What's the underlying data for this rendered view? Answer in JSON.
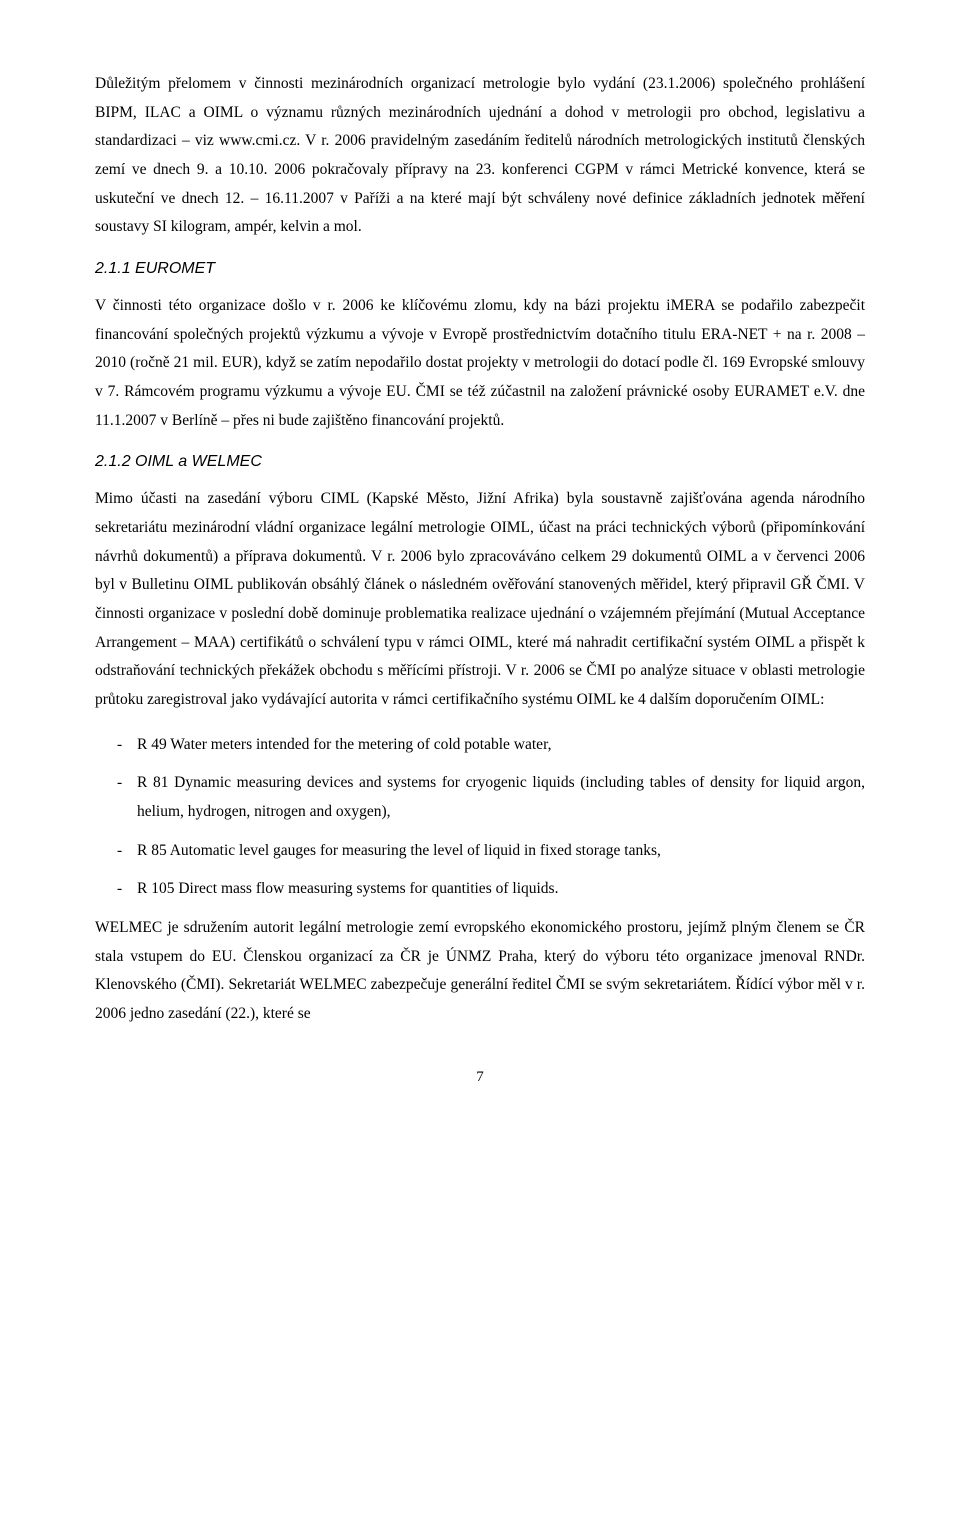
{
  "page": {
    "number": "7"
  },
  "paragraphs": {
    "p1": "Důležitým přelomem v činnosti mezinárodních organizací metrologie bylo vydání (23.1.2006) společného prohlášení BIPM, ILAC a OIML o významu různých mezinárodních ujednání a dohod v metrologii pro obchod, legislativu a standardizaci – viz www.cmi.cz. V r. 2006 pravidelným zasedáním ředitelů národních metrologických institutů členských zemí ve dnech 9. a 10.10. 2006 pokračovaly přípravy na 23. konferenci CGPM v rámci Metrické konvence, která se uskuteční ve dnech 12. – 16.11.2007 v Paříži a na které mají být schváleny nové definice základních jednotek měření soustavy SI kilogram, ampér, kelvin a mol.",
    "p2": "V činnosti této organizace došlo v r. 2006 ke klíčovému zlomu, kdy na bázi projektu iMERA se podařilo zabezpečit financování společných projektů výzkumu a vývoje v Evropě prostřednictvím dotačního titulu ERA-NET + na r. 2008 – 2010 (ročně 21 mil. EUR), když se zatím nepodařilo dostat projekty v metrologii do dotací podle čl. 169 Evropské smlouvy v 7. Rámcovém programu výzkumu a vývoje EU. ČMI se též zúčastnil na založení právnické osoby EURAMET e.V. dne 11.1.2007 v Berlíně – přes ni bude zajištěno financování projektů.",
    "p3": "Mimo účasti na zasedání výboru CIML (Kapské Město, Jižní Afrika) byla soustavně zajišťována agenda národního sekretariátu mezinárodní vládní organizace legální metrologie OIML, účast na práci technických výborů (připomínkování návrhů dokumentů) a příprava dokumentů. V r. 2006 bylo zpracováváno celkem 29 dokumentů OIML a v červenci 2006 byl v Bulletinu OIML publikován obsáhlý článek o následném ověřování stanovených měřidel, který připravil GŘ ČMI. V činnosti organizace v poslední době dominuje problematika realizace ujednání o vzájemném přejímání (Mutual Acceptance Arrangement – MAA) certifikátů o schválení typu v rámci OIML, které má nahradit certifikační systém OIML a přispět k odstraňování technických překážek obchodu s měřícími přístroji. V r. 2006 se ČMI po analýze situace v oblasti metrologie průtoku zaregistroval jako vydávající autorita v rámci certifikačního systému OIML ke 4 dalším doporučením OIML:",
    "p4": "WELMEC je sdružením autorit legální metrologie zemí evropského ekonomického prostoru, jejímž plným členem se ČR stala vstupem do EU. Členskou organizací za ČR je ÚNMZ Praha, který do výboru této organizace jmenoval RNDr. Klenovského (ČMI). Sekretariát WELMEC zabezpečuje generální ředitel ČMI se svým sekretariátem. Řídící výbor měl v r. 2006 jedno zasedání (22.), které se"
  },
  "headings": {
    "h1": "2.1.1    EUROMET",
    "h2": "2.1.2    OIML a WELMEC"
  },
  "list": {
    "i1": "R 49 Water meters intended for the metering of cold potable water,",
    "i2": "R 81 Dynamic measuring devices and systems for cryogenic liquids (including tables of density for liquid argon, helium, hydrogen, nitrogen and oxygen),",
    "i3": "R 85 Automatic level gauges for measuring the level of liquid in fixed storage tanks,",
    "i4": "R 105 Direct mass flow measuring systems for quantities of liquids."
  }
}
